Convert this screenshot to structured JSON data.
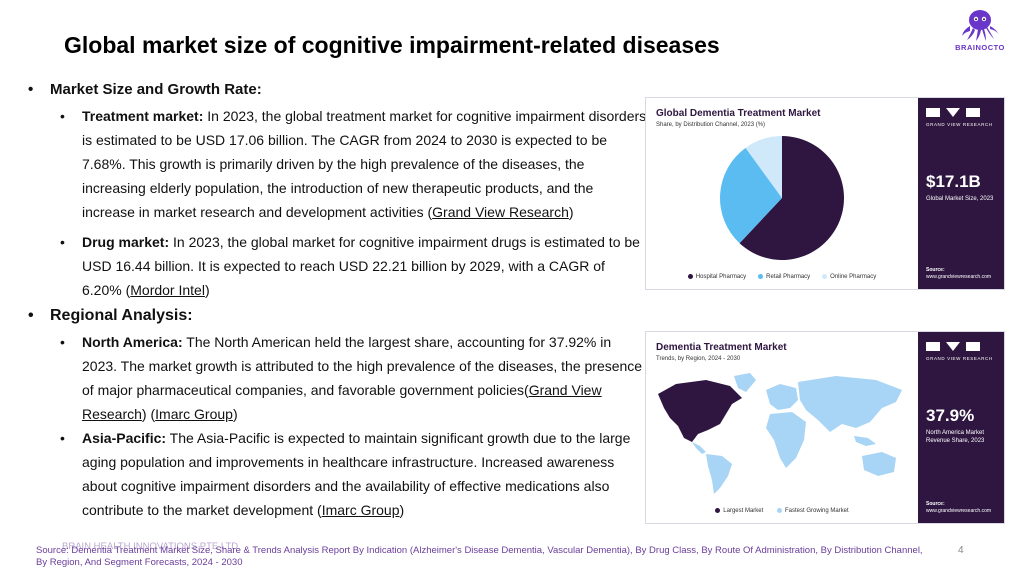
{
  "page": {
    "title": "Global market size of cognitive impairment-related diseases",
    "page_number": "4"
  },
  "logo": {
    "text": "BRAINOCTO"
  },
  "sections": {
    "market": {
      "heading": "Market Size and Growth Rate:",
      "treatment": {
        "label": "Treatment market:",
        "text": " In 2023, the global treatment market for cognitive impairment disorders is estimated to be USD 17.06 billion. The CAGR from 2024 to 2030 is expected to be 7.68%. This growth is primarily driven by the high prevalence of the diseases, the increasing elderly population, the introduction of new therapeutic products, and the increase in market research and development activities (",
        "link": "Grand View Research",
        "end": ")"
      },
      "drug": {
        "label": "Drug market:",
        "text": "  In 2023, the global market for cognitive impairment drugs is estimated to be USD 16.44 billion. It is expected to reach USD 22.21 billion by 2029, with a CAGR of 6.20% (",
        "link": "Mordor Intel",
        "end": ")"
      }
    },
    "regional": {
      "heading": "Regional Analysis:",
      "na": {
        "label": "North America:",
        "text": " The North American held the largest share, accounting for 37.92% in 2023. The market growth is attributed to the high prevalence of the diseases, the presence of major pharmaceutical companies, and favorable government policies(",
        "link1": "Grand View Research",
        "mid": ") (",
        "link2": "Imarc Group",
        "end": ")"
      },
      "ap": {
        "label": "Asia-Pacific:",
        "text": " The Asia-Pacific is expected to maintain significant growth due to the large aging population and improvements in healthcare infrastructure. Increased awareness about cognitive impairment disorders and the availability of effective medications also contribute to the market development (",
        "link": "Imarc Group",
        "end": ")"
      }
    }
  },
  "card1": {
    "title": "Global Dementia Treatment Market",
    "subtitle": "Share, by Distribution Channel, 2023 (%)",
    "brand": "GRAND VIEW RESEARCH",
    "big_value": "$17.1B",
    "big_caption": "Global Market Size, 2023",
    "source_label": "Source:",
    "source_url": "www.grandviewresearch.com"
  },
  "card2": {
    "title": "Dementia Treatment Market",
    "subtitle": "Trends, by Region, 2024 - 2030",
    "brand": "GRAND VIEW RESEARCH",
    "big_value": "37.9%",
    "big_caption": "North America Market Revenue Share, 2023",
    "source_label": "Source:",
    "source_url": "www.grandviewresearch.com",
    "legend": [
      {
        "label": "Largest Market",
        "color": "#2e1640"
      },
      {
        "label": "Fastest Growing Market",
        "color": "#a8d4f5"
      }
    ]
  },
  "chart_data": {
    "type": "pie",
    "title": "Global Dementia Treatment Market",
    "subtitle": "Share, by Distribution Channel, 2023 (%)",
    "categories": [
      "Hospital Pharmacy",
      "Retail Pharmacy",
      "Online Pharmacy"
    ],
    "values": [
      62,
      28,
      10
    ],
    "colors": [
      "#2e1640",
      "#5bbcf2",
      "#cfe9fb"
    ],
    "legend_position": "bottom"
  },
  "footer": {
    "source": "Source: Dementia Treatment Market Size, Share & Trends Analysis Report By Indication (Alzheimer's Disease Dementia, Vascular Dementia), By Drug Class, By Route Of Administration, By Distribution Channel, By Region, And Segment Forecasts, 2024 - 2030",
    "ghost": "BRAIN HEALTH INNOVATIONS PTE LTD"
  }
}
